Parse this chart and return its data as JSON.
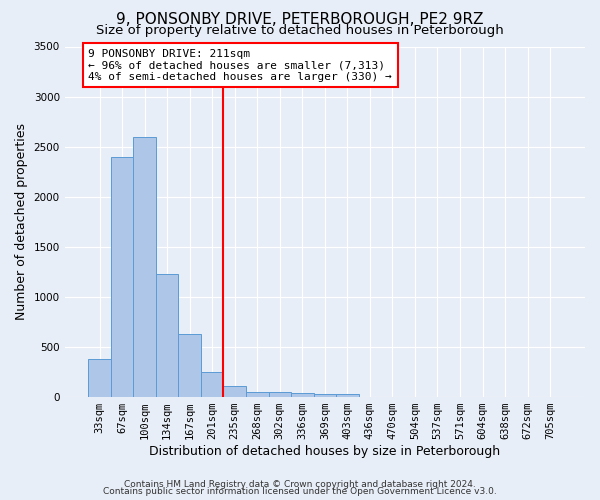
{
  "title": "9, PONSONBY DRIVE, PETERBOROUGH, PE2 9RZ",
  "subtitle": "Size of property relative to detached houses in Peterborough",
  "xlabel": "Distribution of detached houses by size in Peterborough",
  "ylabel": "Number of detached properties",
  "bar_labels": [
    "33sqm",
    "67sqm",
    "100sqm",
    "134sqm",
    "167sqm",
    "201sqm",
    "235sqm",
    "268sqm",
    "302sqm",
    "336sqm",
    "369sqm",
    "403sqm",
    "436sqm",
    "470sqm",
    "504sqm",
    "537sqm",
    "571sqm",
    "604sqm",
    "638sqm",
    "672sqm",
    "705sqm"
  ],
  "bar_values": [
    375,
    2400,
    2600,
    1225,
    625,
    250,
    110,
    50,
    45,
    40,
    30,
    30,
    0,
    0,
    0,
    0,
    0,
    0,
    0,
    0,
    0
  ],
  "bar_color": "#AEC6E8",
  "bar_edge_color": "#5B9BD5",
  "vline_x_index": 5.5,
  "vline_color": "red",
  "annotation_text": "9 PONSONBY DRIVE: 211sqm\n← 96% of detached houses are smaller (7,313)\n4% of semi-detached houses are larger (330) →",
  "annotation_box_color": "white",
  "annotation_box_edge_color": "red",
  "ylim": [
    0,
    3500
  ],
  "yticks": [
    0,
    500,
    1000,
    1500,
    2000,
    2500,
    3000,
    3500
  ],
  "background_color": "#E8EEF7",
  "grid_color": "white",
  "title_fontsize": 11,
  "subtitle_fontsize": 9.5,
  "xlabel_fontsize": 9,
  "ylabel_fontsize": 9,
  "tick_fontsize": 7.5,
  "annotation_fontsize": 8,
  "footer_line1": "Contains HM Land Registry data © Crown copyright and database right 2024.",
  "footer_line2": "Contains public sector information licensed under the Open Government Licence v3.0."
}
